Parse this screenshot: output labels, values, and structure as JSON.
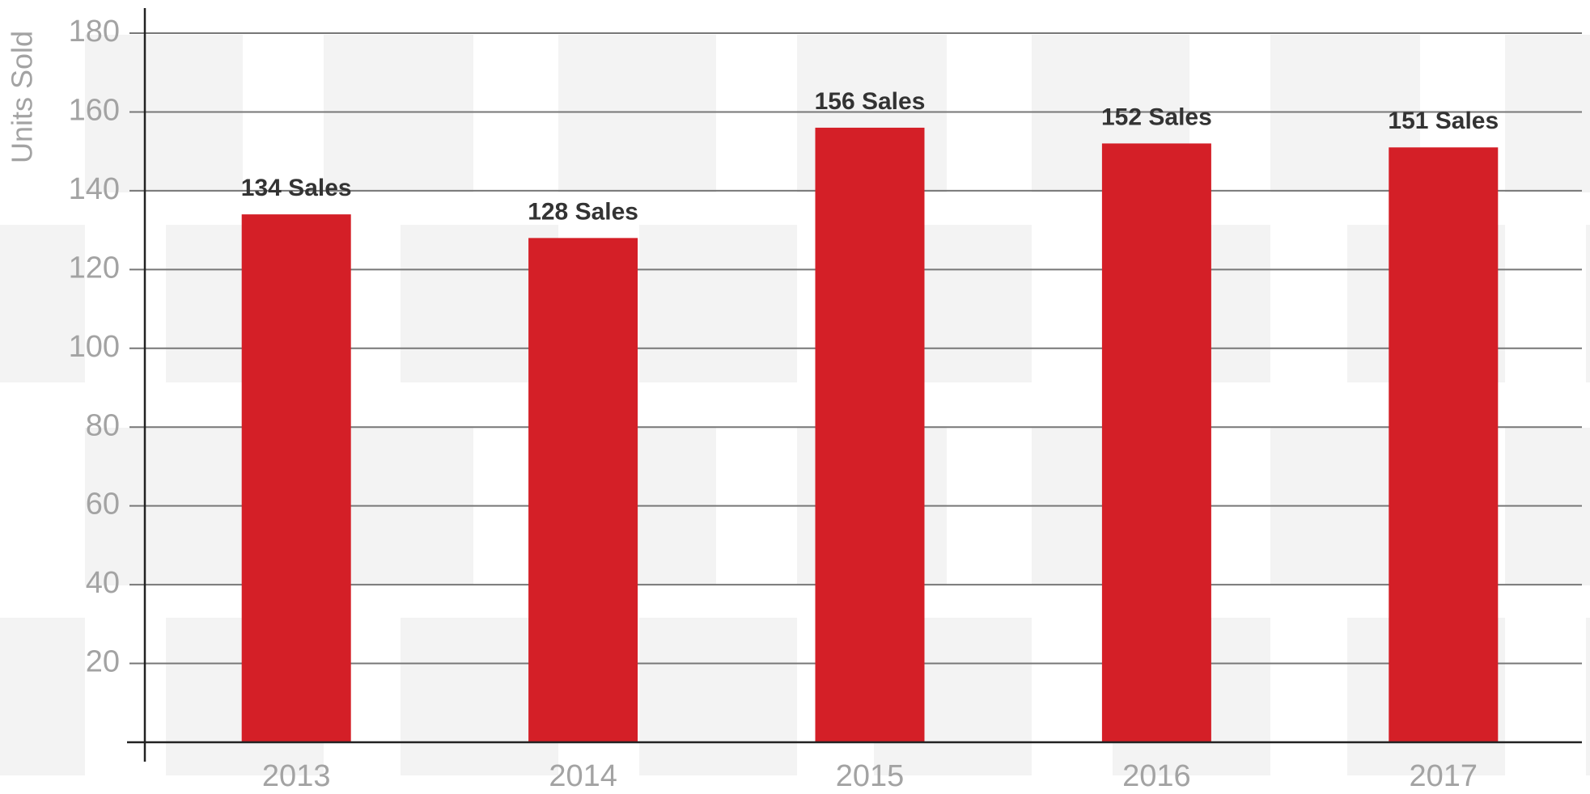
{
  "chart_data": {
    "type": "bar",
    "y_label": "Units Sold",
    "categories": [
      "2013",
      "2014",
      "2015",
      "2016",
      "2017"
    ],
    "values": [
      134,
      128,
      156,
      152,
      151
    ],
    "value_labels": [
      "134 Sales",
      "128 Sales",
      "156 Sales",
      "152 Sales",
      "151 Sales"
    ],
    "color": "#d41f27",
    "ylim": [
      0,
      180
    ],
    "yticks": [
      20,
      40,
      60,
      80,
      100,
      120,
      140,
      160,
      180
    ],
    "grid": true
  }
}
